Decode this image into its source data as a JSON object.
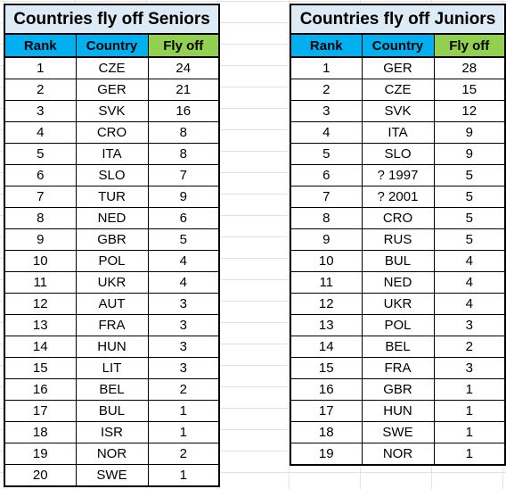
{
  "tables": [
    {
      "title": "Countries fly off Seniors",
      "columns": [
        "Rank",
        "Country",
        "Fly off"
      ],
      "rows": [
        [
          1,
          "CZE",
          24
        ],
        [
          2,
          "GER",
          21
        ],
        [
          3,
          "SVK",
          16
        ],
        [
          4,
          "CRO",
          8
        ],
        [
          5,
          "ITA",
          8
        ],
        [
          6,
          "SLO",
          7
        ],
        [
          7,
          "TUR",
          9
        ],
        [
          8,
          "NED",
          6
        ],
        [
          9,
          "GBR",
          5
        ],
        [
          10,
          "POL",
          4
        ],
        [
          11,
          "UKR",
          4
        ],
        [
          12,
          "AUT",
          3
        ],
        [
          13,
          "FRA",
          3
        ],
        [
          14,
          "HUN",
          3
        ],
        [
          15,
          "LIT",
          3
        ],
        [
          16,
          "BEL",
          2
        ],
        [
          17,
          "BUL",
          1
        ],
        [
          18,
          "ISR",
          1
        ],
        [
          19,
          "NOR",
          2
        ],
        [
          20,
          "SWE",
          1
        ]
      ]
    },
    {
      "title": "Countries fly off Juniors",
      "columns": [
        "Rank",
        "Country",
        "Fly off"
      ],
      "rows": [
        [
          1,
          "GER",
          28
        ],
        [
          2,
          "CZE",
          15
        ],
        [
          3,
          "SVK",
          12
        ],
        [
          4,
          "ITA",
          9
        ],
        [
          5,
          "SLO",
          9
        ],
        [
          6,
          "? 1997",
          5
        ],
        [
          7,
          "? 2001",
          5
        ],
        [
          8,
          "CRO",
          5
        ],
        [
          9,
          "RUS",
          5
        ],
        [
          10,
          "BUL",
          4
        ],
        [
          11,
          "NED",
          4
        ],
        [
          12,
          "UKR",
          4
        ],
        [
          13,
          "POL",
          3
        ],
        [
          14,
          "BEL",
          2
        ],
        [
          15,
          "FRA",
          3
        ],
        [
          16,
          "GBR",
          1
        ],
        [
          17,
          "HUN",
          1
        ],
        [
          18,
          "SWE",
          1
        ],
        [
          19,
          "NOR",
          1
        ]
      ]
    }
  ]
}
